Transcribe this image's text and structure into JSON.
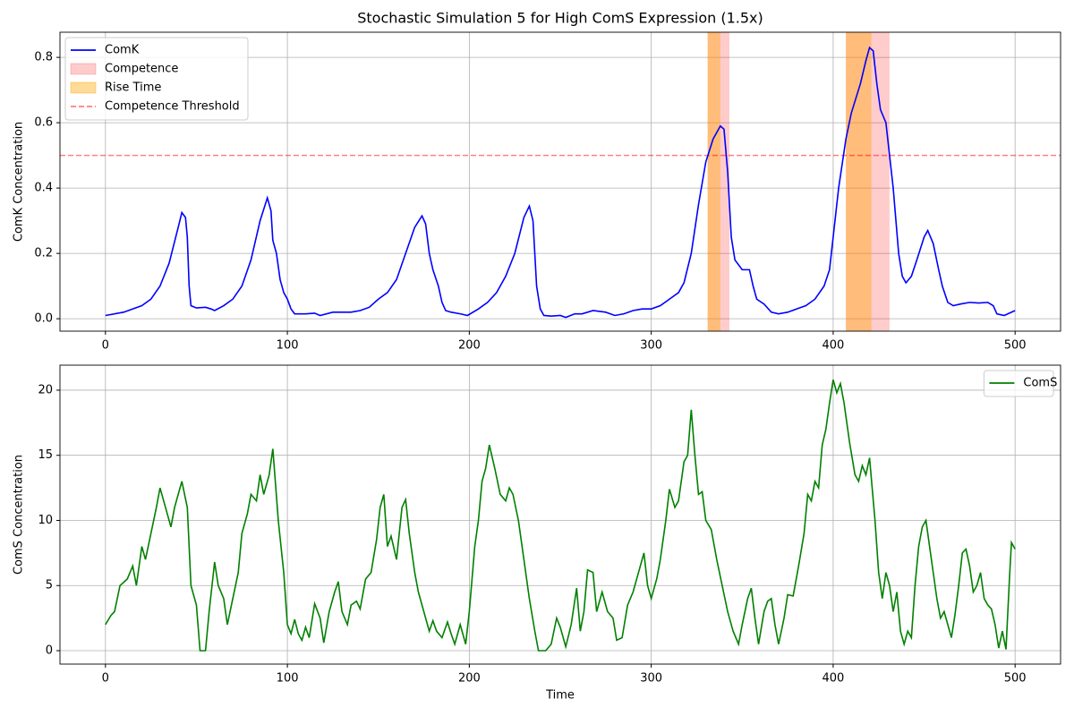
{
  "chart_data": [
    {
      "type": "line",
      "title": "Stochastic Simulation 5 for High ComS Expression (1.5x)",
      "ylabel": "ComK Concentration",
      "x": [
        0,
        10,
        20,
        25,
        30,
        35,
        40,
        42,
        44,
        45,
        46,
        47,
        50,
        55,
        58,
        60,
        65,
        70,
        75,
        80,
        85,
        89,
        91,
        92,
        94,
        96,
        98,
        100,
        102,
        104,
        110,
        115,
        118,
        125,
        135,
        140,
        145,
        150,
        155,
        160,
        165,
        170,
        174,
        176,
        178,
        180,
        183,
        185,
        187,
        190,
        195,
        199,
        205,
        210,
        215,
        220,
        225,
        230,
        233,
        235,
        237,
        239,
        241,
        245,
        250,
        253,
        258,
        262,
        268,
        275,
        280,
        285,
        290,
        295,
        300,
        305,
        310,
        315,
        318,
        322,
        326,
        330,
        334,
        338,
        340,
        342,
        344,
        346,
        350,
        354,
        356,
        358,
        362,
        366,
        370,
        375,
        380,
        385,
        390,
        395,
        398,
        400,
        403,
        407,
        410,
        415,
        418,
        420,
        422,
        424,
        426,
        429,
        431,
        433,
        436,
        438,
        440,
        443,
        446,
        450,
        452,
        455,
        458,
        460,
        463,
        466,
        470,
        475,
        480,
        485,
        488,
        490,
        494,
        500
      ],
      "series": [
        {
          "name": "ComK",
          "color": "#0000ff",
          "values": [
            0.01,
            0.02,
            0.04,
            0.06,
            0.1,
            0.17,
            0.28,
            0.325,
            0.31,
            0.25,
            0.1,
            0.04,
            0.033,
            0.035,
            0.03,
            0.025,
            0.04,
            0.06,
            0.1,
            0.18,
            0.3,
            0.37,
            0.33,
            0.24,
            0.2,
            0.12,
            0.08,
            0.06,
            0.03,
            0.015,
            0.015,
            0.017,
            0.01,
            0.02,
            0.02,
            0.025,
            0.035,
            0.06,
            0.08,
            0.12,
            0.2,
            0.28,
            0.315,
            0.29,
            0.2,
            0.15,
            0.1,
            0.05,
            0.025,
            0.02,
            0.015,
            0.01,
            0.03,
            0.05,
            0.08,
            0.13,
            0.2,
            0.31,
            0.345,
            0.3,
            0.1,
            0.03,
            0.01,
            0.008,
            0.01,
            0.004,
            0.015,
            0.015,
            0.025,
            0.02,
            0.01,
            0.015,
            0.025,
            0.03,
            0.03,
            0.04,
            0.06,
            0.08,
            0.11,
            0.2,
            0.35,
            0.48,
            0.55,
            0.59,
            0.58,
            0.45,
            0.25,
            0.18,
            0.15,
            0.15,
            0.1,
            0.06,
            0.045,
            0.02,
            0.015,
            0.02,
            0.03,
            0.04,
            0.06,
            0.1,
            0.15,
            0.25,
            0.4,
            0.55,
            0.63,
            0.72,
            0.79,
            0.83,
            0.82,
            0.72,
            0.64,
            0.6,
            0.5,
            0.4,
            0.2,
            0.13,
            0.11,
            0.13,
            0.18,
            0.25,
            0.27,
            0.23,
            0.15,
            0.1,
            0.05,
            0.04,
            0.045,
            0.05,
            0.048,
            0.05,
            0.04,
            0.015,
            0.01,
            0.025
          ]
        }
      ],
      "spans": [
        {
          "name": "Competence",
          "color": "#ff0000",
          "opacity": 0.2,
          "ranges": [
            [
              331,
              343
            ],
            [
              407,
              431
            ]
          ]
        },
        {
          "name": "Rise Time",
          "color": "#ffa500",
          "opacity": 0.4,
          "ranges": [
            [
              331,
              338
            ],
            [
              407,
              421
            ]
          ]
        }
      ],
      "hlines": [
        {
          "name": "Competence Threshold",
          "value": 0.5,
          "color": "#ff0000",
          "opacity": 0.5,
          "dashed": true
        }
      ],
      "xlim": [
        -25,
        525
      ],
      "xticks": [
        0,
        100,
        200,
        300,
        400,
        500
      ],
      "ylim": [
        -0.038,
        0.877
      ],
      "yticks": [
        {
          "value": 0,
          "label": "0.0"
        },
        0.2,
        0.4,
        0.6,
        0.8
      ],
      "grid": true,
      "legend": "upper left"
    },
    {
      "type": "line",
      "xlabel": "Time",
      "ylabel": "ComS Concentration",
      "x": [
        0,
        3,
        5,
        8,
        12,
        15,
        17,
        20,
        22,
        25,
        28,
        30,
        33,
        36,
        38,
        40,
        42,
        45,
        47,
        50,
        52,
        55,
        57,
        60,
        62,
        65,
        67,
        70,
        73,
        75,
        78,
        80,
        83,
        85,
        87,
        90,
        92,
        95,
        98,
        100,
        102,
        104,
        106,
        108,
        110,
        112,
        115,
        118,
        120,
        123,
        126,
        128,
        130,
        133,
        135,
        138,
        140,
        143,
        146,
        149,
        151,
        153,
        155,
        157,
        160,
        163,
        165,
        167,
        170,
        172,
        175,
        178,
        180,
        182,
        185,
        188,
        190,
        192,
        195,
        198,
        200,
        203,
        205,
        207,
        209,
        211,
        214,
        217,
        220,
        222,
        224,
        227,
        230,
        233,
        236,
        238,
        242,
        245,
        248,
        250,
        253,
        256,
        259,
        261,
        263,
        265,
        268,
        270,
        273,
        276,
        279,
        281,
        284,
        287,
        290,
        293,
        296,
        298,
        300,
        303,
        305,
        308,
        310,
        313,
        315,
        318,
        320,
        322,
        324,
        326,
        328,
        330,
        333,
        336,
        339,
        342,
        345,
        348,
        350,
        353,
        355,
        357,
        359,
        362,
        364,
        366,
        368,
        370,
        373,
        375,
        378,
        381,
        384,
        386,
        388,
        390,
        392,
        394,
        396,
        398,
        400,
        402,
        404,
        406,
        409,
        412,
        414,
        416,
        418,
        420,
        423,
        425,
        427,
        429,
        431,
        433,
        435,
        437,
        439,
        441,
        443,
        445,
        447,
        449,
        451,
        453,
        455,
        457,
        459,
        461,
        463,
        465,
        467,
        469,
        471,
        473,
        475,
        477,
        479,
        481,
        483,
        485,
        487,
        489,
        491,
        493,
        495,
        497,
        498,
        500
      ],
      "series": [
        {
          "name": "ComS",
          "color": "#008000",
          "values": [
            2,
            2.7,
            3,
            5,
            5.5,
            6.5,
            5,
            8,
            7,
            9,
            11,
            12.5,
            11,
            9.5,
            11,
            12,
            13,
            11,
            5,
            3.5,
            0,
            0,
            3,
            6.8,
            5,
            4,
            2,
            4,
            6,
            9,
            10.5,
            12,
            11.5,
            13.5,
            12,
            13.5,
            15.5,
            10,
            6,
            2,
            1.3,
            2.4,
            1.3,
            0.8,
            1.8,
            1,
            3.6,
            2.5,
            0.6,
            3,
            4.5,
            5.3,
            3,
            2,
            3.5,
            3.8,
            3.2,
            5.5,
            6,
            8.5,
            11,
            12,
            8,
            8.8,
            7,
            11,
            11.6,
            9,
            6,
            4.5,
            3,
            1.5,
            2.3,
            1.5,
            1,
            2.2,
            1.3,
            0.5,
            2,
            0.5,
            3,
            8,
            10,
            13,
            14,
            15.8,
            14,
            12,
            11.5,
            12.5,
            12,
            10,
            7,
            4,
            1.5,
            0,
            0,
            0.5,
            2.5,
            1.8,
            0.3,
            2,
            4.8,
            1.5,
            3,
            6.2,
            6,
            3,
            4.5,
            3,
            2.5,
            0.8,
            1,
            3.5,
            4.5,
            6,
            7.5,
            5,
            4,
            5.5,
            7,
            10,
            12.4,
            11,
            11.5,
            14.5,
            15,
            18.5,
            15,
            12,
            12.2,
            10,
            9.3,
            7,
            5,
            3,
            1.5,
            0.5,
            2,
            4,
            4.8,
            2.5,
            0.5,
            3,
            3.8,
            4,
            2,
            0.5,
            2.5,
            4.3,
            4.2,
            6.5,
            9,
            12,
            11.5,
            13,
            12.5,
            15.8,
            17,
            19,
            20.8,
            19.8,
            20.5,
            19,
            16,
            13.5,
            13,
            14.2,
            13.5,
            14.8,
            10,
            6,
            4,
            6,
            5,
            3,
            4.5,
            1.5,
            0.5,
            1.5,
            1,
            5,
            8,
            9.5,
            10,
            8,
            6,
            4,
            2.5,
            3,
            2,
            1,
            2.8,
            5,
            7.5,
            7.8,
            6.5,
            4.5,
            5,
            6,
            4,
            3.5,
            3.2,
            2,
            0.2,
            1.5,
            0.1,
            5.8,
            8.3,
            7.8
          ]
        }
      ],
      "xlim": [
        -25,
        525
      ],
      "xticks": [
        0,
        100,
        200,
        300,
        400,
        500
      ],
      "ylim": [
        -1.03,
        21.92
      ],
      "yticks": [
        0,
        5,
        10,
        15,
        20
      ],
      "grid": true,
      "legend": "upper right"
    }
  ]
}
